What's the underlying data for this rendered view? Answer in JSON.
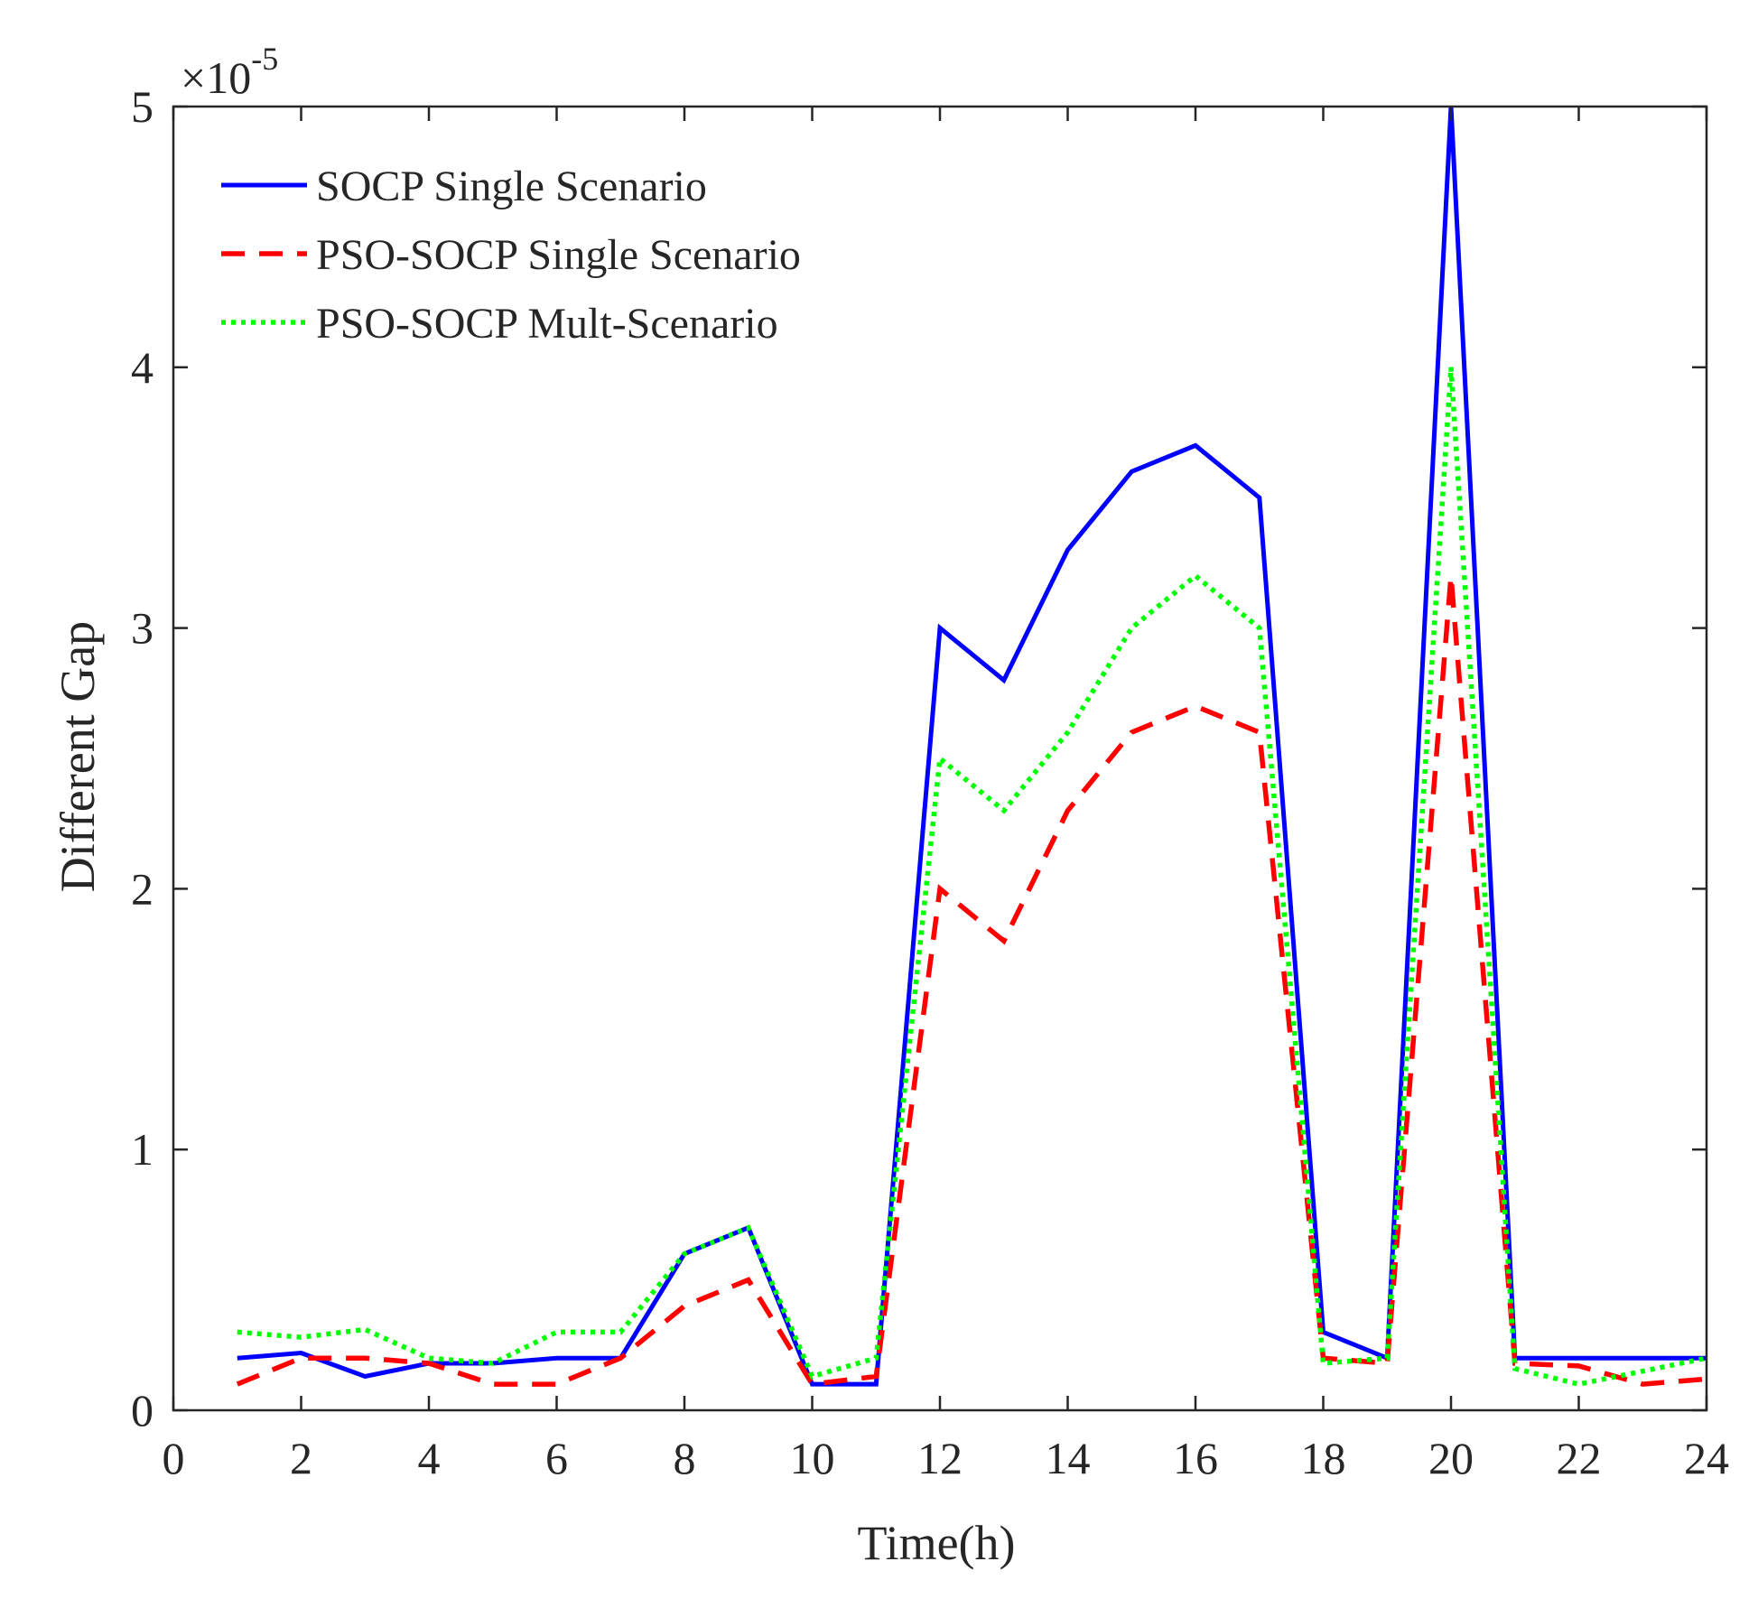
{
  "chart_data": {
    "type": "line",
    "title": "",
    "xlabel": "Time(h)",
    "ylabel": "Different Gap",
    "xlim": [
      0,
      24
    ],
    "ylim": [
      0,
      5
    ],
    "y_exponent_label": "×10",
    "y_exponent_power": "-5",
    "xticks": [
      0,
      2,
      4,
      6,
      8,
      10,
      12,
      14,
      16,
      18,
      20,
      22,
      24
    ],
    "yticks": [
      0,
      1,
      2,
      3,
      4,
      5
    ],
    "legend_position": "top-left",
    "x": [
      1,
      2,
      3,
      4,
      5,
      6,
      7,
      8,
      9,
      10,
      11,
      12,
      13,
      14,
      15,
      16,
      17,
      18,
      19,
      20,
      21,
      22,
      23,
      24
    ],
    "series": [
      {
        "name": "SOCP Single Scenario",
        "color": "#0000ff",
        "style": "solid",
        "values": [
          0.2,
          0.22,
          0.13,
          0.18,
          0.18,
          0.2,
          0.2,
          0.6,
          0.7,
          0.1,
          0.1,
          3.0,
          2.8,
          3.3,
          3.6,
          3.7,
          3.5,
          0.3,
          0.2,
          5.0,
          0.2,
          0.2,
          0.2,
          0.2
        ]
      },
      {
        "name": "PSO-SOCP Single Scenario",
        "color": "#ff0000",
        "style": "dashed",
        "values": [
          0.1,
          0.2,
          0.2,
          0.18,
          0.1,
          0.1,
          0.2,
          0.4,
          0.5,
          0.1,
          0.13,
          2.0,
          1.8,
          2.3,
          2.6,
          2.7,
          2.6,
          0.2,
          0.18,
          3.2,
          0.18,
          0.17,
          0.1,
          0.12
        ]
      },
      {
        "name": "PSO-SOCP Mult-Scenario",
        "color": "#00ff00",
        "style": "dotted",
        "values": [
          0.3,
          0.28,
          0.31,
          0.2,
          0.18,
          0.3,
          0.3,
          0.6,
          0.7,
          0.13,
          0.2,
          2.5,
          2.3,
          2.6,
          3.0,
          3.2,
          3.0,
          0.18,
          0.2,
          4.0,
          0.16,
          0.1,
          0.15,
          0.2
        ]
      }
    ]
  }
}
